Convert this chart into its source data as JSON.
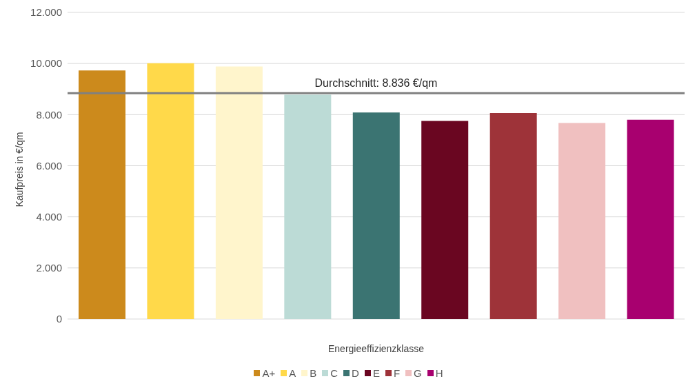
{
  "chart_data": {
    "type": "bar",
    "xlabel": "Energieeffizienzklasse",
    "ylabel": "Kaufpreis in €/qm",
    "categories": [
      null,
      null,
      null,
      null,
      null,
      null,
      null,
      null,
      null
    ],
    "series": [
      {
        "name": "A+",
        "color": "#cc8a1c",
        "values": [
          9730,
          null,
          null,
          null,
          null,
          null,
          null,
          null,
          null
        ]
      },
      {
        "name": "A",
        "color": "#ffd94a",
        "values": [
          null,
          10010,
          null,
          null,
          null,
          null,
          null,
          null,
          null
        ]
      },
      {
        "name": "B",
        "color": "#fff5cc",
        "values": [
          null,
          null,
          9880,
          null,
          null,
          null,
          null,
          null,
          null
        ]
      },
      {
        "name": "C",
        "color": "#bcdbd6",
        "values": [
          null,
          null,
          null,
          8780,
          null,
          null,
          null,
          null,
          null
        ]
      },
      {
        "name": "D",
        "color": "#3b7472",
        "values": [
          null,
          null,
          null,
          null,
          8080,
          null,
          null,
          null,
          null
        ]
      },
      {
        "name": "E",
        "color": "#6a0621",
        "values": [
          null,
          null,
          null,
          null,
          null,
          7750,
          null,
          null,
          null
        ]
      },
      {
        "name": "F",
        "color": "#9e3339",
        "values": [
          null,
          null,
          null,
          null,
          null,
          null,
          8060,
          null,
          null
        ]
      },
      {
        "name": "G",
        "color": "#f0c0c0",
        "values": [
          null,
          null,
          null,
          null,
          null,
          null,
          null,
          7670,
          null
        ]
      },
      {
        "name": "H",
        "color": "#a8006f",
        "values": [
          null,
          null,
          null,
          null,
          null,
          null,
          null,
          null,
          7800
        ]
      }
    ],
    "ylim": [
      0,
      12000
    ],
    "yticks": [
      {
        "value": 0,
        "label": "0"
      },
      {
        "value": 2000,
        "label": "2.000"
      },
      {
        "value": 4000,
        "label": "4.000"
      },
      {
        "value": 6000,
        "label": "6.000"
      },
      {
        "value": 8000,
        "label": "8.000"
      },
      {
        "value": 10000,
        "label": "10.000"
      },
      {
        "value": 12000,
        "label": "12.000"
      }
    ],
    "ref_lines": [
      {
        "axis": "y",
        "value": 8836,
        "label": "Durchschnitt: 8.836 €/qm",
        "color": "#808080"
      }
    ],
    "grid": "y",
    "legend": "bottom"
  }
}
